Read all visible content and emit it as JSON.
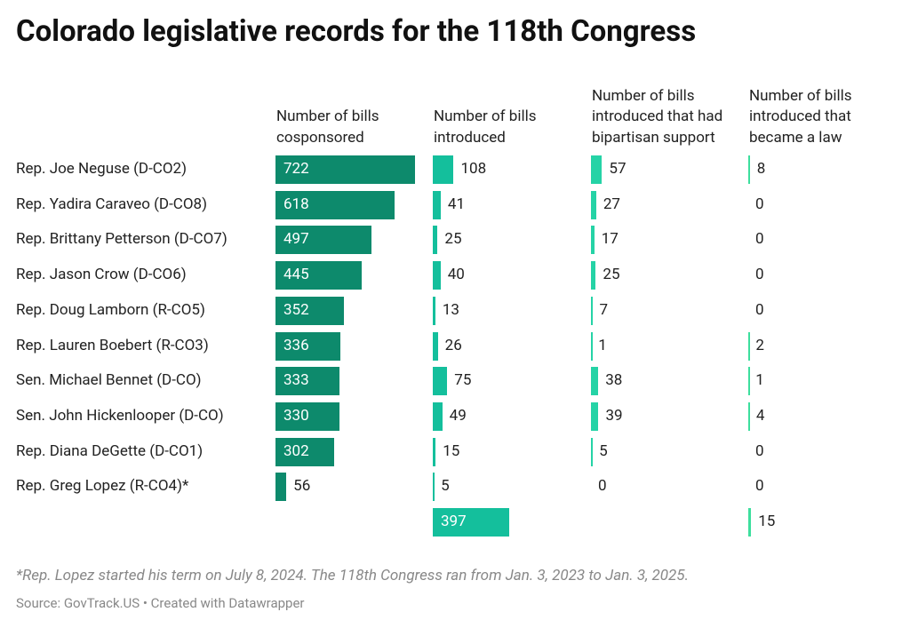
{
  "chart_data": {
    "type": "bar_table",
    "title": "Colorado legislative records for the 118th Congress",
    "categories": [
      "Rep. Joe Neguse (D-CO2)",
      "Rep. Yadira Caraveo (D-CO8)",
      "Rep. Brittany Petterson (D-CO7)",
      "Rep. Jason Crow (D-CO6)",
      "Rep. Doug Lamborn (R-CO5)",
      "Rep. Lauren Boebert (R-CO3)",
      "Sen. Michael Bennet (D-CO)",
      "Sen. John Hickenlooper (D-CO)",
      "Rep. Diana DeGette (D-CO1)",
      "Rep. Greg Lopez (R-CO4)*",
      null
    ],
    "series": [
      {
        "name": "Number of bills cosponsored",
        "color": "#0d8a6c",
        "values": [
          722,
          618,
          497,
          445,
          352,
          336,
          333,
          330,
          302,
          56,
          null
        ]
      },
      {
        "name": "Number of bills introduced",
        "color": "#14bf9c",
        "values": [
          108,
          41,
          25,
          40,
          13,
          26,
          75,
          49,
          15,
          5,
          397
        ]
      },
      {
        "name": "Number of bills introduced that had bipartisan support",
        "color": "#25d3a6",
        "values": [
          57,
          27,
          17,
          25,
          7,
          1,
          38,
          39,
          5,
          0,
          null
        ]
      },
      {
        "name": "Number of bills introduced that became a law",
        "color": "#3ddf9e",
        "values": [
          8,
          0,
          0,
          0,
          0,
          2,
          1,
          4,
          0,
          0,
          15
        ]
      }
    ],
    "note": "*Rep. Lopez started his term on July 8, 2024. The 118th Congress ran from Jan. 3, 2023 to Jan. 3, 2025.",
    "source": "Source: GovTrack.US • Created with Datawrapper"
  }
}
